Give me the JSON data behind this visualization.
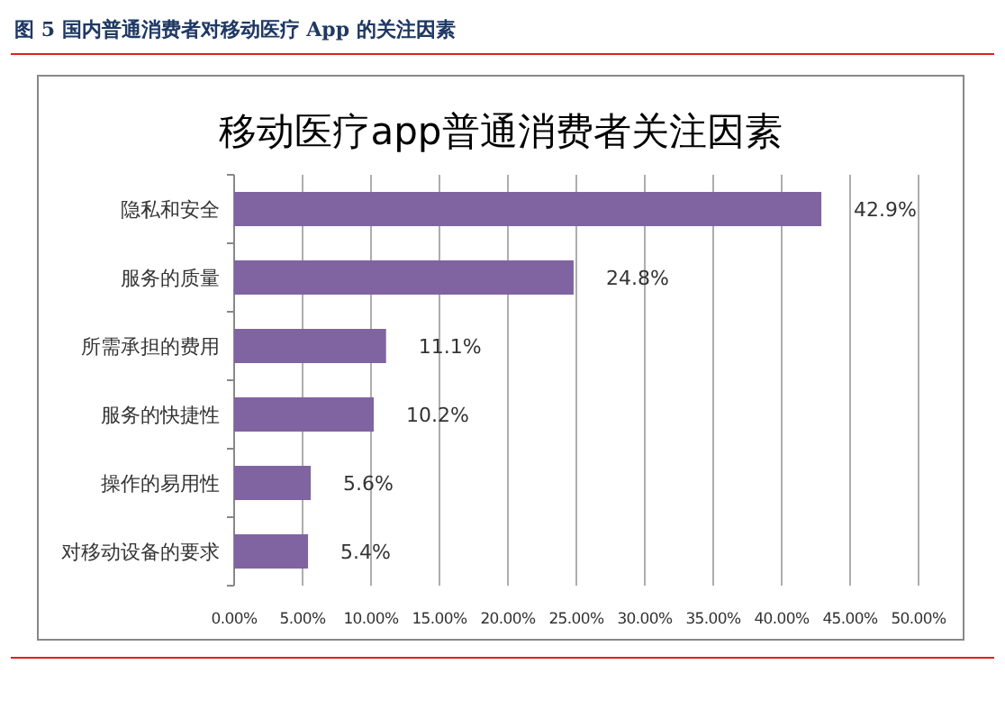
{
  "chart_data": {
    "type": "bar",
    "orientation": "horizontal",
    "title": "移动医疗app普通消费者关注因素",
    "subtitle": "图 5 国内普通消费者对移动医疗 App 的关注因素",
    "categories": [
      "隐私和安全",
      "服务的质量",
      "所需承担的费用",
      "服务的快捷性",
      "操作的易用性",
      "对移动设备的要求"
    ],
    "values": [
      42.9,
      24.8,
      11.1,
      10.2,
      5.6,
      5.4
    ],
    "value_labels": [
      "42.9%",
      "24.8%",
      "11.1%",
      "10.2%",
      "5.6%",
      "5.4%"
    ],
    "color": "#8064a2",
    "xlim": [
      0,
      50
    ],
    "xticks": [
      {
        "value": 0,
        "label": "0.00%"
      },
      {
        "value": 5,
        "label": "5.00%"
      },
      {
        "value": 10,
        "label": "10.00%"
      },
      {
        "value": 15,
        "label": "15.00%"
      },
      {
        "value": 20,
        "label": "20.00%"
      },
      {
        "value": 25,
        "label": "25.00%"
      },
      {
        "value": 30,
        "label": "30.00%"
      },
      {
        "value": 35,
        "label": "35.00%"
      },
      {
        "value": 40,
        "label": "40.00%"
      },
      {
        "value": 45,
        "label": "45.00%"
      },
      {
        "value": 50,
        "label": "50.00%"
      }
    ],
    "grid": "x"
  }
}
